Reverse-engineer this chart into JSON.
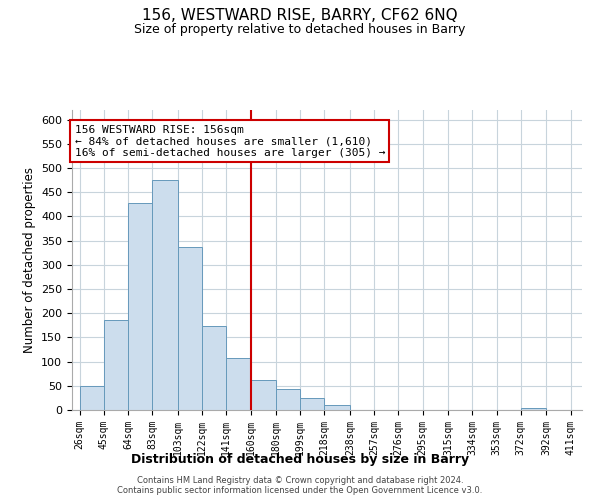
{
  "title": "156, WESTWARD RISE, BARRY, CF62 6NQ",
  "subtitle": "Size of property relative to detached houses in Barry",
  "xlabel": "Distribution of detached houses by size in Barry",
  "ylabel": "Number of detached properties",
  "bar_left_edges": [
    26,
    45,
    64,
    83,
    103,
    122,
    141,
    160,
    180,
    199,
    218,
    238,
    257,
    276,
    295,
    315,
    334,
    353,
    372,
    392
  ],
  "bar_heights": [
    50,
    187,
    428,
    475,
    337,
    174,
    108,
    61,
    44,
    24,
    11,
    0,
    0,
    0,
    0,
    0,
    0,
    0,
    5,
    0
  ],
  "bar_widths": [
    19,
    19,
    19,
    20,
    19,
    19,
    19,
    20,
    19,
    19,
    20,
    19,
    19,
    19,
    20,
    19,
    19,
    19,
    20,
    19
  ],
  "bar_color": "#ccdded",
  "bar_edgecolor": "#6699bb",
  "x_tick_labels": [
    "26sqm",
    "45sqm",
    "64sqm",
    "83sqm",
    "103sqm",
    "122sqm",
    "141sqm",
    "160sqm",
    "180sqm",
    "199sqm",
    "218sqm",
    "238sqm",
    "257sqm",
    "276sqm",
    "295sqm",
    "315sqm",
    "334sqm",
    "353sqm",
    "372sqm",
    "392sqm",
    "411sqm"
  ],
  "x_tick_positions": [
    26,
    45,
    64,
    83,
    103,
    122,
    141,
    160,
    180,
    199,
    218,
    238,
    257,
    276,
    295,
    315,
    334,
    353,
    372,
    392,
    411
  ],
  "ylim": [
    0,
    620
  ],
  "yticks": [
    0,
    50,
    100,
    150,
    200,
    250,
    300,
    350,
    400,
    450,
    500,
    550,
    600
  ],
  "xlim_left": 20,
  "xlim_right": 420,
  "property_line_x": 160,
  "property_line_color": "#cc0000",
  "annotation_title": "156 WESTWARD RISE: 156sqm",
  "annotation_line1": "← 84% of detached houses are smaller (1,610)",
  "annotation_line2": "16% of semi-detached houses are larger (305) →",
  "footer_line1": "Contains HM Land Registry data © Crown copyright and database right 2024.",
  "footer_line2": "Contains public sector information licensed under the Open Government Licence v3.0.",
  "background_color": "#ffffff",
  "grid_color": "#c8d4dc"
}
